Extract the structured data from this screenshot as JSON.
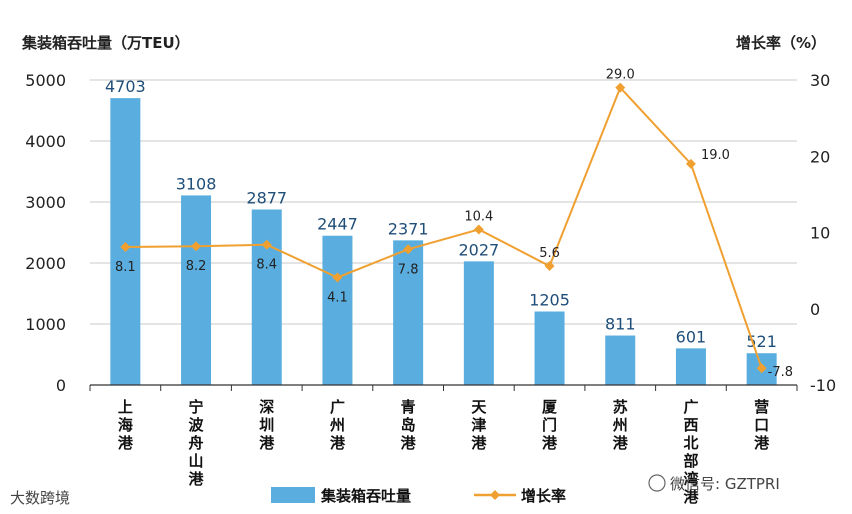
{
  "chart_data": {
    "type": "bar",
    "left_axis_title": "集装箱吞吐量（万TEU）",
    "right_axis_title": "增长率（%）",
    "categories": [
      "上海港",
      "宁波舟山港",
      "深圳港",
      "广州港",
      "青岛港",
      "天津港",
      "厦门港",
      "苏州港",
      "广西北部湾港",
      "营口港"
    ],
    "series": [
      {
        "name": "集装箱吞吐量",
        "type": "bar",
        "axis": "left",
        "color": "#5aaedf",
        "values": [
          4703,
          3108,
          2877,
          2447,
          2371,
          2027,
          1205,
          811,
          601,
          521
        ],
        "labels": [
          "4703",
          "3108",
          "2877",
          "2447",
          "2371",
          "2027",
          "1205",
          "811",
          "601",
          "521"
        ]
      },
      {
        "name": "增长率",
        "type": "line",
        "axis": "right",
        "color": "#f0a030",
        "values": [
          8.1,
          8.2,
          8.4,
          4.1,
          7.8,
          10.4,
          5.6,
          29.0,
          19.0,
          -7.8
        ],
        "labels": [
          "8.1",
          "8.2",
          "8.4",
          "4.1",
          "7.8",
          "10.4",
          "5.6",
          "29.0",
          "19.0",
          "-7.8"
        ]
      }
    ],
    "left_ylim": [
      0,
      5000
    ],
    "left_ticks": [
      "0",
      "1000",
      "2000",
      "3000",
      "4000",
      "5000"
    ],
    "right_ylim": [
      -10,
      30
    ],
    "right_ticks": [
      "-10",
      "0",
      "10",
      "20",
      "30"
    ],
    "grid": true,
    "legend_position": "bottom"
  },
  "watermarks": {
    "left": "大数跨境",
    "right": "微信号: GZTPRI"
  }
}
